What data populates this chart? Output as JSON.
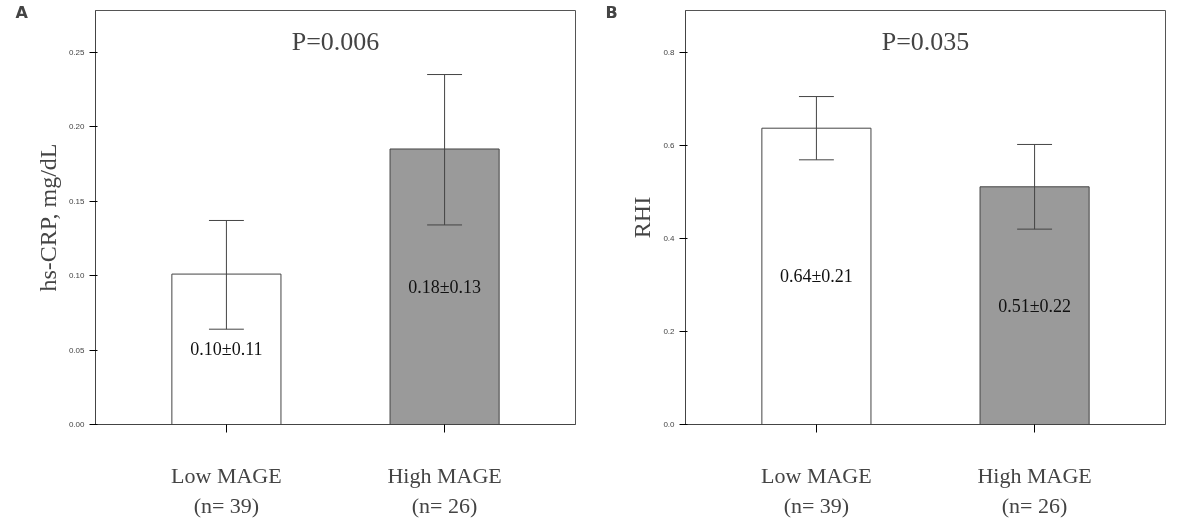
{
  "chart_data": [
    {
      "type": "bar",
      "ylabel": "hs-CRP, mg/dL",
      "categories": [
        "Low MAGE\n(n= 39)",
        "High MAGE\n(n= 26)"
      ],
      "values": [
        0.101,
        0.185
      ],
      "colors": [
        "#ffffff",
        "#9a9a9a"
      ],
      "errors": [
        [
          0.064,
          0.137
        ],
        [
          0.134,
          0.235
        ]
      ],
      "value_labels": [
        "0.10±0.11",
        "0.18±0.13"
      ],
      "ylim": [
        0,
        0.278
      ],
      "yticks": [
        {
          "value": 0,
          "label": "0.00"
        },
        {
          "value": 0.05,
          "label": "0.05"
        },
        {
          "value": 0.1,
          "label": "0.10"
        },
        {
          "value": 0.15,
          "label": "0.15"
        },
        {
          "value": 0.2,
          "label": "0.20"
        },
        {
          "value": 0.25,
          "label": "0.25"
        }
      ],
      "annotations": [
        "A",
        "P=0.006"
      ],
      "grid": false
    },
    {
      "type": "bar",
      "ylabel": "RHI",
      "categories": [
        "Low MAGE\n(n= 39)",
        "High MAGE\n(n= 26)"
      ],
      "values": [
        0.637,
        0.511
      ],
      "colors": [
        "#ffffff",
        "#9a9a9a"
      ],
      "errors": [
        [
          0.569,
          0.705
        ],
        [
          0.42,
          0.602
        ]
      ],
      "value_labels": [
        "0.64±0.21",
        "0.51±0.22"
      ],
      "ylim": [
        0,
        0.89
      ],
      "yticks": [
        {
          "value": 0,
          "label": "0.0"
        },
        {
          "value": 0.2,
          "label": "0.2"
        },
        {
          "value": 0.4,
          "label": "0.4"
        },
        {
          "value": 0.6,
          "label": "0.6"
        },
        {
          "value": 0.8,
          "label": "0.8"
        }
      ],
      "annotations": [
        "B",
        "P=0.035"
      ],
      "grid": false
    }
  ]
}
